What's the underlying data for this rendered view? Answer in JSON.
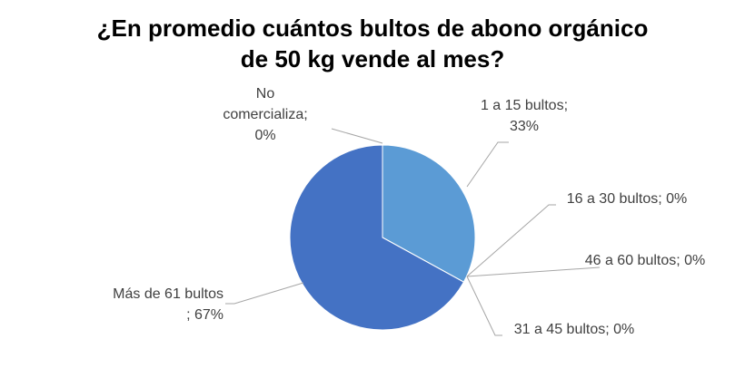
{
  "chart_data": {
    "type": "pie",
    "title": "¿En promedio cuántos bultos de abono orgánico\nde 50 kg vende al mes?",
    "categories": [
      "1 a 15 bultos",
      "16 a 30 bultos",
      "31 a 45 bultos",
      "46 a 60 bultos",
      "Más de 61 bultos ",
      "No comercializa"
    ],
    "values": [
      33,
      0,
      0,
      0,
      67,
      0
    ],
    "value_labels": [
      "33%",
      "0%",
      "0%",
      "0%",
      "67%",
      "0%"
    ],
    "label_separator": ";",
    "colors": [
      "#5b9bd5",
      "#ed7d31",
      "#a5a5a5",
      "#ffc000",
      "#4472c4",
      "#70ad47"
    ]
  }
}
